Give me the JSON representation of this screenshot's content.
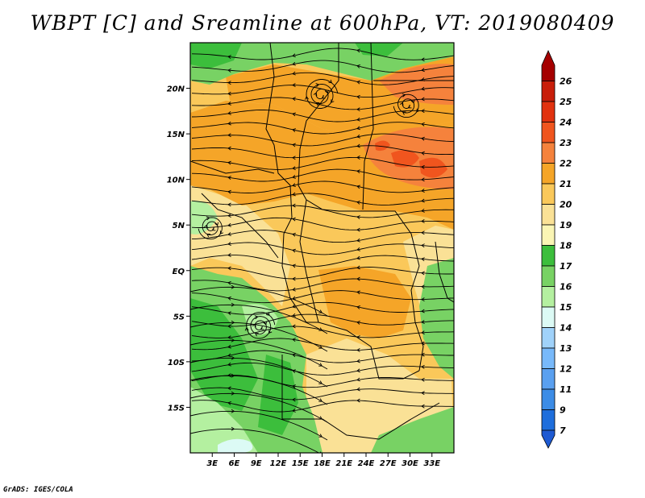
{
  "title": "WBPT [C] and Sreamline at 600hPa, VT: 2019080409",
  "credit": "GrADS: IGES/COLA",
  "map": {
    "lat_range": [
      -20,
      25
    ],
    "lon_range": [
      0,
      36
    ],
    "lat_labels": [
      {
        "text": "20N",
        "lat": 20
      },
      {
        "text": "15N",
        "lat": 15
      },
      {
        "text": "10N",
        "lat": 10
      },
      {
        "text": "5N",
        "lat": 5
      },
      {
        "text": "EQ",
        "lat": 0
      },
      {
        "text": "5S",
        "lat": -5
      },
      {
        "text": "10S",
        "lat": -10
      },
      {
        "text": "15S",
        "lat": -15
      }
    ],
    "lon_labels": [
      {
        "text": "3E",
        "lon": 3
      },
      {
        "text": "6E",
        "lon": 6
      },
      {
        "text": "9E",
        "lon": 9
      },
      {
        "text": "12E",
        "lon": 12
      },
      {
        "text": "15E",
        "lon": 15
      },
      {
        "text": "18E",
        "lon": 18
      },
      {
        "text": "21E",
        "lon": 21
      },
      {
        "text": "24E",
        "lon": 24
      },
      {
        "text": "27E",
        "lon": 27
      },
      {
        "text": "30E",
        "lon": 30
      },
      {
        "text": "33E",
        "lon": 33
      }
    ]
  },
  "colorbar": {
    "levels": [
      {
        "label": "26",
        "color": "#a50000"
      },
      {
        "label": "25",
        "color": "#c81e0a"
      },
      {
        "label": "24",
        "color": "#e1320f"
      },
      {
        "label": "23",
        "color": "#f0551e"
      },
      {
        "label": "22",
        "color": "#f5823c"
      },
      {
        "label": "21",
        "color": "#f5a528"
      },
      {
        "label": "20",
        "color": "#fac85a"
      },
      {
        "label": "19",
        "color": "#fae196"
      },
      {
        "label": "18",
        "color": "#faf5b4"
      },
      {
        "label": "17",
        "color": "#3cbe3c"
      },
      {
        "label": "16",
        "color": "#78d264"
      },
      {
        "label": "15",
        "color": "#b4f0a0"
      },
      {
        "label": "14",
        "color": "#dcfaf5"
      },
      {
        "label": "13",
        "color": "#a0d2fa"
      },
      {
        "label": "12",
        "color": "#78b9fa"
      },
      {
        "label": "11",
        "color": "#5aa0f0"
      },
      {
        "label": "9",
        "color": "#3c8ce6"
      },
      {
        "label": "7",
        "color": "#1e6edc"
      }
    ],
    "lower_tip_color": "#1e5ad2"
  },
  "fields": {
    "fill_colors": {
      "base": "#fac85a",
      "warm": "#f5a528",
      "hot": "#f5823c",
      "hotter": "#f0551e",
      "pale": "#fae196",
      "green": "#78d264",
      "dark_green": "#3cbe3c",
      "light_green": "#b4f0a0",
      "cyan": "#dcfaf5"
    }
  }
}
